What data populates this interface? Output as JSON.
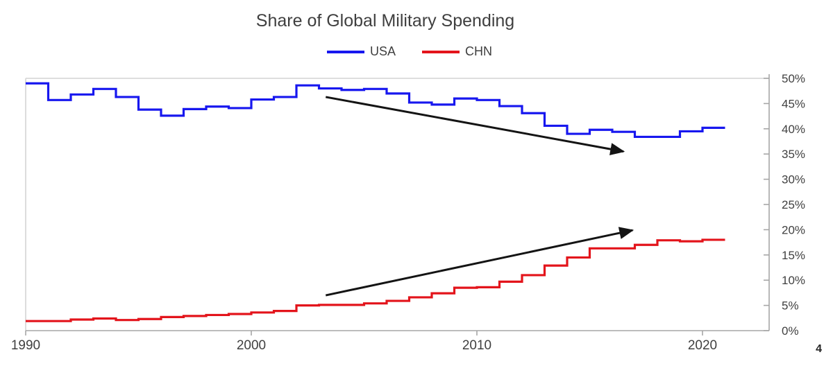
{
  "page": {
    "page_number": "4"
  },
  "chart_data": {
    "type": "line",
    "style": "step-post",
    "title": "Share of Global Military Spending",
    "xlabel": "",
    "ylabel": "",
    "xlim": [
      1990,
      2022.9
    ],
    "ylim": [
      0,
      50
    ],
    "grid": false,
    "legend_position": "top-center",
    "years": [
      1990,
      1991,
      1992,
      1993,
      1994,
      1995,
      1996,
      1997,
      1998,
      1999,
      2000,
      2001,
      2002,
      2003,
      2004,
      2005,
      2006,
      2007,
      2008,
      2009,
      2010,
      2011,
      2012,
      2013,
      2014,
      2015,
      2016,
      2017,
      2018,
      2019,
      2020,
      2021
    ],
    "series": [
      {
        "name": "USA",
        "color": "#1717ef",
        "values": [
          49.0,
          45.7,
          46.8,
          47.9,
          46.3,
          43.8,
          42.6,
          43.9,
          44.4,
          44.1,
          45.8,
          46.3,
          48.6,
          48.0,
          47.7,
          47.9,
          47.0,
          45.2,
          44.8,
          46.0,
          45.7,
          44.5,
          43.1,
          40.6,
          39.0,
          39.8,
          39.4,
          38.4,
          38.4,
          39.5,
          40.2,
          40.2
        ]
      },
      {
        "name": "CHN",
        "color": "#e3141b",
        "values": [
          1.9,
          1.9,
          2.2,
          2.4,
          2.1,
          2.3,
          2.7,
          2.9,
          3.1,
          3.3,
          3.6,
          3.9,
          5.0,
          5.1,
          5.1,
          5.4,
          5.9,
          6.6,
          7.4,
          8.5,
          8.6,
          9.7,
          11.0,
          12.9,
          14.5,
          16.3,
          16.3,
          17.0,
          17.9,
          17.7,
          18.0,
          18.0
        ]
      }
    ],
    "y_tick_labels": [
      "0%",
      "5%",
      "10%",
      "15%",
      "20%",
      "25%",
      "30%",
      "35%",
      "40%",
      "45%",
      "50%"
    ],
    "x_ticks": [
      {
        "year": 1990,
        "label": "1990"
      },
      {
        "year": 2000,
        "label": "2000"
      },
      {
        "year": 2010,
        "label": "2010"
      },
      {
        "year": 2020,
        "label": "2020"
      }
    ],
    "annotations": [
      {
        "name": "usa-decline-arrow",
        "type": "arrow",
        "from": {
          "year": 2003.3,
          "pct": 46.3
        },
        "to": {
          "year": 2016.5,
          "pct": 35.5
        }
      },
      {
        "name": "chn-rise-arrow",
        "type": "arrow",
        "from": {
          "year": 2003.3,
          "pct": 7.0
        },
        "to": {
          "year": 2016.9,
          "pct": 19.9
        }
      }
    ],
    "colors": {
      "axis": "#a6a6a6",
      "plot_border": "#d4d4d4",
      "tick_text": "#404040",
      "arrow": "#141414"
    }
  }
}
